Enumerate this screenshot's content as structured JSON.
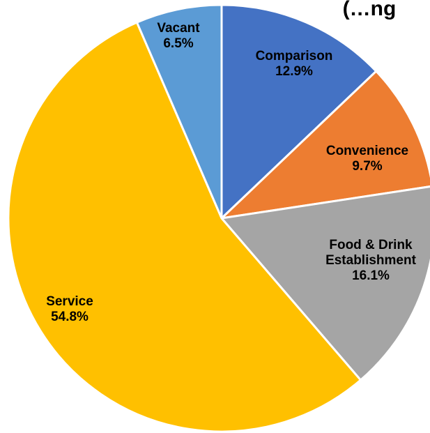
{
  "chart_data": {
    "type": "pie",
    "title_fragment": "(…ng",
    "slices": [
      {
        "label": "Comparison",
        "value": 12.9,
        "value_label": "12.9%",
        "color": "#4472C4"
      },
      {
        "label": "Convenience",
        "value": 9.7,
        "value_label": "9.7%",
        "color": "#ED7D31"
      },
      {
        "label": "Food & Drink Establishment",
        "label_lines": [
          "Food & Drink",
          "Establishment"
        ],
        "value": 16.1,
        "value_label": "16.1%",
        "color": "#A5A5A5"
      },
      {
        "label": "Service",
        "value": 54.8,
        "value_label": "54.8%",
        "color": "#FFC000"
      },
      {
        "label": "Vacant",
        "value": 6.5,
        "value_label": "6.5%",
        "color": "#5B9BD5"
      }
    ]
  }
}
